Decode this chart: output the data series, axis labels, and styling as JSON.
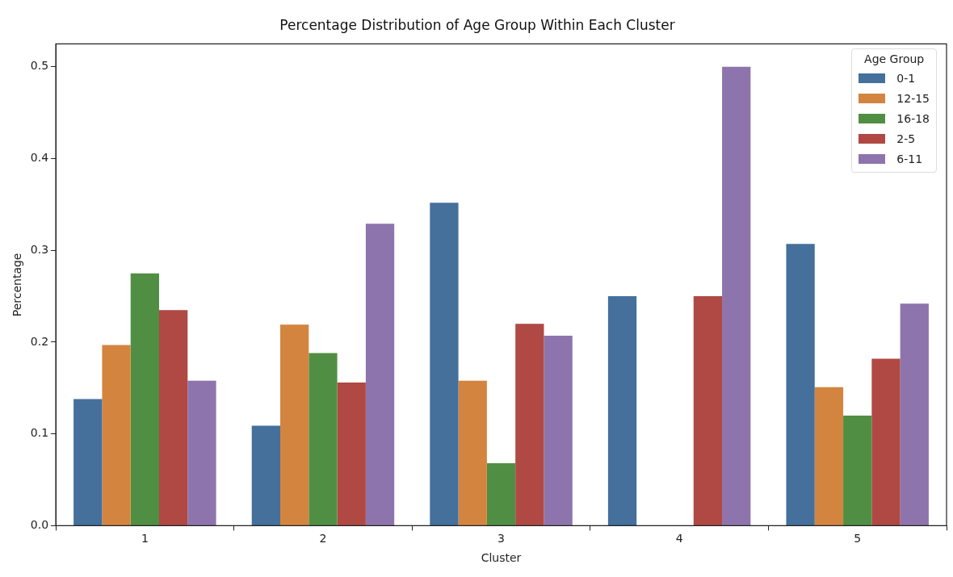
{
  "chart_data": {
    "type": "bar",
    "title": "Percentage Distribution of Age Group Within Each Cluster",
    "xlabel": "Cluster",
    "ylabel": "Percentage",
    "categories": [
      "1",
      "2",
      "3",
      "4",
      "5"
    ],
    "series": [
      {
        "name": "0-1",
        "color": "#44709b",
        "values": [
          0.138,
          0.109,
          0.352,
          0.25,
          0.307
        ]
      },
      {
        "name": "12-15",
        "color": "#d38540",
        "values": [
          0.197,
          0.219,
          0.158,
          0,
          0.151
        ]
      },
      {
        "name": "16-18",
        "color": "#508f43",
        "values": [
          0.275,
          0.188,
          0.068,
          0,
          0.12
        ]
      },
      {
        "name": "2-5",
        "color": "#b04844",
        "values": [
          0.235,
          0.156,
          0.22,
          0.25,
          0.182
        ]
      },
      {
        "name": "6-11",
        "color": "#8e74ad",
        "values": [
          0.158,
          0.329,
          0.207,
          0.5,
          0.242
        ]
      }
    ],
    "ylim": [
      0,
      0.525
    ],
    "yticks": [
      {
        "value": 0,
        "label": "0.0"
      },
      0.1,
      0.2,
      0.3,
      0.4,
      0.5
    ],
    "grid": false,
    "legend": "top right",
    "legend_title": "Age Group"
  }
}
